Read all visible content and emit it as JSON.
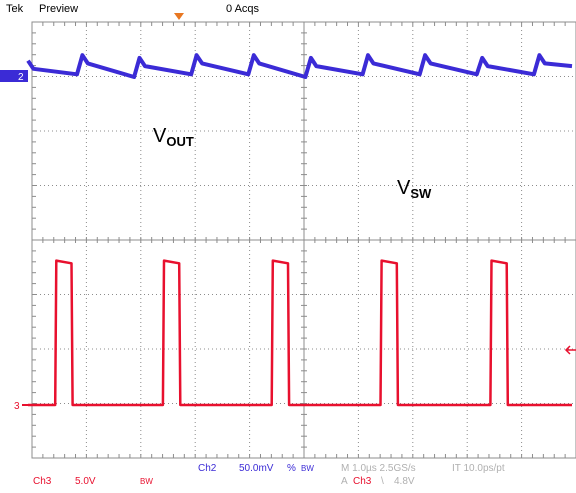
{
  "header": {
    "brand": "Tek",
    "mode": "Preview",
    "acqs": "0 Acqs"
  },
  "traces": {
    "vout_main": "V",
    "vout_sub": "OUT",
    "vsw_main": "V",
    "vsw_sub": "SW"
  },
  "channel_markers": {
    "ch2": "2",
    "ch3": "3"
  },
  "readouts": {
    "ch3_label": "Ch3",
    "ch3_scale": "5.0V",
    "ch3_bw": "BW",
    "ch2_label": "Ch2",
    "ch2_scale": "50.0mV",
    "ch2_coupling": "%",
    "ch2_bw": "BW",
    "timebase": "M 1.0µs 2.5GS/s",
    "record": "IT 10.0ps/pt",
    "trigger_prefix": "A",
    "trigger_source": "Ch3",
    "trigger_slope": "\\",
    "trigger_level": "4.8V"
  },
  "colors": {
    "ch2": "#3b2bd6",
    "ch3": "#e8102e",
    "grid": "#8c8c8c",
    "muted": "#b0b0b0"
  },
  "chart_data": {
    "type": "line",
    "series": [
      {
        "name": "V_OUT",
        "channel": "Ch2",
        "x_us": [
          0.0,
          0.1,
          0.9,
          1.0,
          1.1,
          1.95,
          2.05,
          2.15,
          3.0,
          3.1,
          3.2,
          4.05,
          4.15,
          4.25,
          5.1,
          5.2,
          5.3,
          6.15,
          6.25,
          6.35,
          7.2,
          7.3,
          7.4,
          8.25,
          8.35,
          8.45,
          9.3,
          9.4,
          9.5,
          10.0
        ],
        "y_div": [
          0.3,
          0.15,
          0.05,
          0.4,
          0.25,
          0.0,
          0.35,
          0.2,
          0.05,
          0.4,
          0.25,
          0.05,
          0.4,
          0.25,
          0.0,
          0.35,
          0.2,
          0.05,
          0.4,
          0.25,
          0.05,
          0.4,
          0.25,
          0.05,
          0.35,
          0.2,
          0.05,
          0.4,
          0.25,
          0.2
        ]
      },
      {
        "name": "V_SW",
        "channel": "Ch3",
        "x_us": [
          0.0,
          0.5,
          0.52,
          0.8,
          0.82,
          2.48,
          2.5,
          2.78,
          2.8,
          4.48,
          4.5,
          4.78,
          4.8,
          6.48,
          6.5,
          6.78,
          6.8,
          8.5,
          8.52,
          8.8,
          8.82,
          10.0
        ],
        "y_div": [
          0.0,
          0.0,
          2.65,
          2.6,
          0.0,
          0.0,
          2.65,
          2.6,
          0.0,
          0.0,
          2.65,
          2.6,
          0.0,
          0.0,
          2.65,
          2.6,
          0.0,
          0.0,
          2.65,
          2.6,
          0.0,
          0.0
        ]
      }
    ],
    "xlim_us": [
      0,
      10
    ],
    "grid": true,
    "divisions": {
      "x": 10,
      "y": 8
    }
  }
}
